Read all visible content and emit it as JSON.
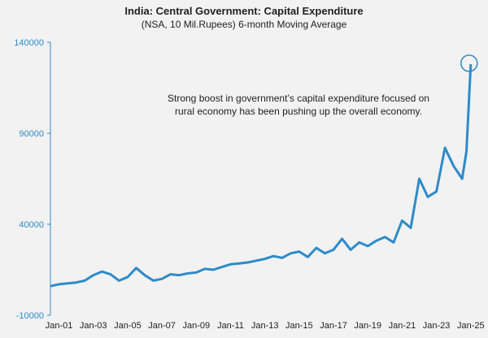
{
  "chart_data": {
    "type": "line",
    "title": "India: Central Government: Capital Expenditure",
    "subtitle": "(NSA, 10 Mil.Rupees) 6-month Moving Average",
    "xlabel": "",
    "ylabel": "",
    "ylim": [
      -10000,
      140000
    ],
    "y_ticks": [
      "-10000",
      "40000",
      "90000",
      "140000"
    ],
    "x_ticks": [
      "Jan-01",
      "Jan-03",
      "Jan-05",
      "Jan-07",
      "Jan-09",
      "Jan-11",
      "Jan-13",
      "Jan-15",
      "Jan-17",
      "Jan-19",
      "Jan-21",
      "Jan-23",
      "Jan-25"
    ],
    "grid": false,
    "line_color": "#2e8bc9",
    "annotation": [
      "Strong boost in government’s capital expenditure focused on",
      "rural economy has been pushing up the overall economy."
    ],
    "highlight_point": {
      "x": 2025.0,
      "y": 128000
    },
    "series": [
      {
        "x": [
          2000.5,
          2001.0,
          2001.5,
          2002.0,
          2002.5,
          2003.0,
          2003.5,
          2004.0,
          2004.5,
          2005.0,
          2005.5,
          2006.0,
          2006.5,
          2007.0,
          2007.5,
          2008.0,
          2008.5,
          2009.0,
          2009.5,
          2010.0,
          2010.5,
          2011.0,
          2011.5,
          2012.0,
          2012.5,
          2013.0,
          2013.5,
          2014.0,
          2014.5,
          2015.0,
          2015.5,
          2016.0,
          2016.5,
          2017.0,
          2017.5,
          2018.0,
          2018.5,
          2019.0,
          2019.5,
          2020.0,
          2020.5,
          2021.0,
          2021.5,
          2022.0,
          2022.5,
          2023.0,
          2023.5,
          2024.0,
          2024.5,
          2024.75,
          2025.0
        ],
        "y": [
          6000,
          7000,
          7500,
          8000,
          9000,
          12000,
          14000,
          12500,
          9000,
          11000,
          16000,
          12000,
          9000,
          10000,
          12500,
          12000,
          13000,
          13500,
          15500,
          15000,
          16500,
          18000,
          18500,
          19000,
          20000,
          21000,
          22500,
          21500,
          24000,
          25000,
          22000,
          27000,
          24000,
          26000,
          32000,
          26000,
          30000,
          28000,
          31000,
          33000,
          30000,
          42000,
          38000,
          65000,
          55000,
          58000,
          82000,
          72000,
          65000,
          80000,
          128000
        ]
      }
    ]
  }
}
